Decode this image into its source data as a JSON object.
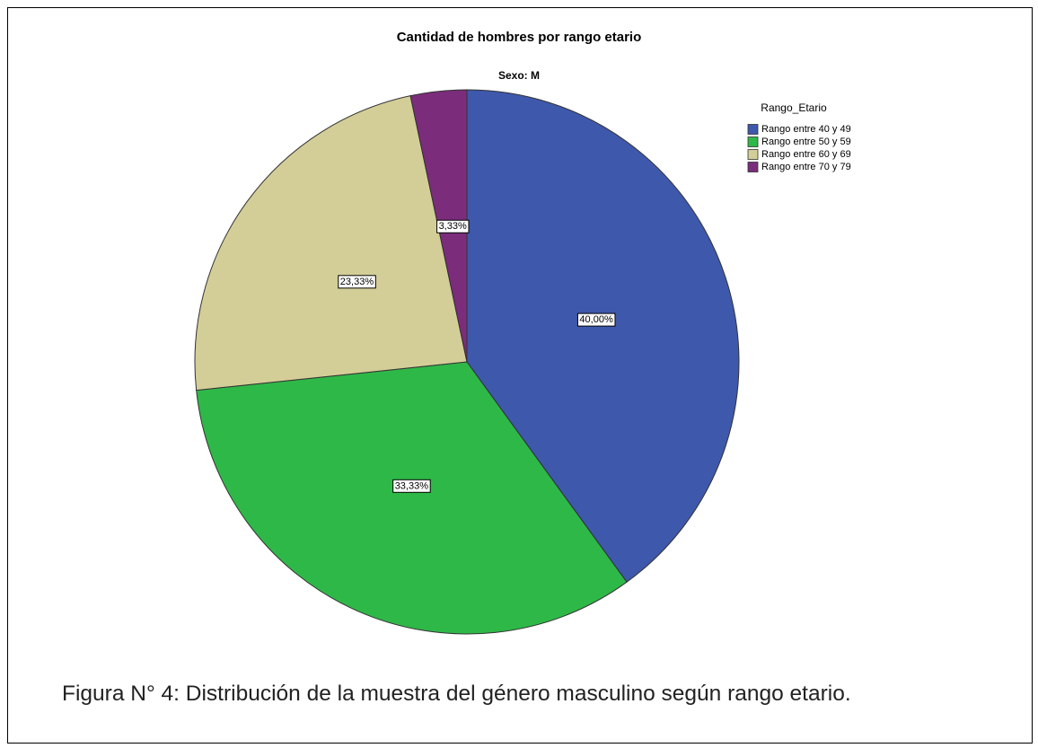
{
  "chart_data": {
    "type": "pie",
    "title": "Cantidad de hombres por rango etario",
    "subtitle": "Sexo: M",
    "legend_title": "Rango_Etario",
    "categories": [
      "Rango entre 40 y 49",
      "Rango entre 50 y 59",
      "Rango entre 60 y 69",
      "Rango entre 70 y 79"
    ],
    "values": [
      40,
      33.33,
      23.33,
      3.33
    ],
    "value_labels": [
      "40,00%",
      "33,33%",
      "23,33%",
      "3,33%"
    ],
    "colors": [
      "#3e58ac",
      "#2eb848",
      "#d3ce97",
      "#7b2c7b"
    ],
    "legend": "upper right"
  },
  "caption": "Figura N° 4: Distribución de la muestra del género masculino según rango etario."
}
